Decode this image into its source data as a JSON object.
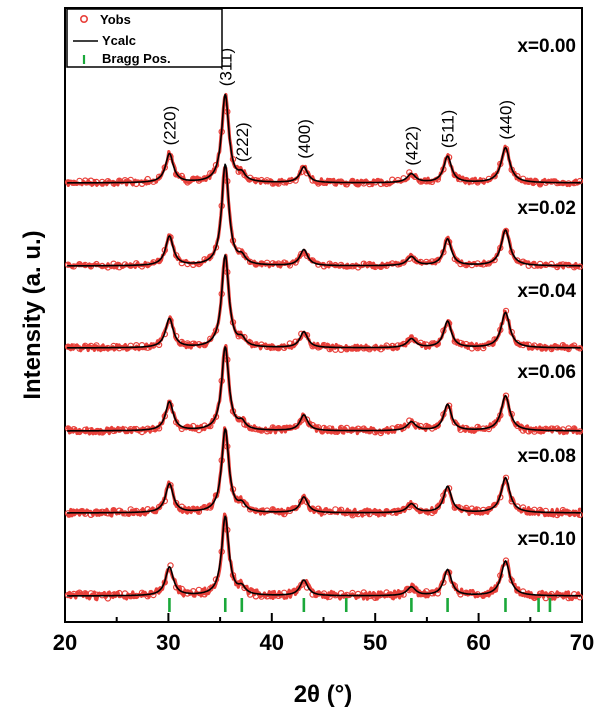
{
  "chart_data": {
    "type": "line",
    "xlabel": "2θ (°)",
    "ylabel": "Intensity (a. u.)",
    "xlim": [
      20,
      70
    ],
    "x_ticks": [
      "20",
      "30",
      "40",
      "50",
      "60",
      "70"
    ],
    "legend": {
      "placement": "top-left",
      "entries": [
        {
          "label": "Yobs",
          "marker": "circle",
          "color": "#e8403a"
        },
        {
          "label": "Ycalc",
          "marker": "line",
          "color": "#000000"
        },
        {
          "label": "Bragg Pos.",
          "marker": "vbar",
          "color": "#1aa83a"
        }
      ]
    },
    "series": [
      {
        "name": "x=0.00",
        "peak_scale": 1.0,
        "noise": 1.0
      },
      {
        "name": "x=0.02",
        "peak_scale": 1.15,
        "noise": 0.8
      },
      {
        "name": "x=0.04",
        "peak_scale": 1.05,
        "noise": 1.0
      },
      {
        "name": "x=0.06",
        "peak_scale": 0.95,
        "noise": 1.1
      },
      {
        "name": "x=0.08",
        "peak_scale": 0.95,
        "noise": 1.2
      },
      {
        "name": "x=0.10",
        "peak_scale": 0.9,
        "noise": 1.3
      }
    ],
    "peaks": [
      {
        "hkl": "(220)",
        "two_theta": 30.1,
        "rel_intensity": 0.33,
        "width": 0.45
      },
      {
        "hkl": "(311)",
        "two_theta": 35.5,
        "rel_intensity": 1.0,
        "width": 0.42
      },
      {
        "hkl": "(222)",
        "two_theta": 37.1,
        "rel_intensity": 0.08,
        "width": 0.4
      },
      {
        "hkl": "(400)",
        "two_theta": 43.1,
        "rel_intensity": 0.18,
        "width": 0.45
      },
      {
        "hkl": "(422)",
        "two_theta": 53.5,
        "rel_intensity": 0.1,
        "width": 0.5
      },
      {
        "hkl": "(511)",
        "two_theta": 57.0,
        "rel_intensity": 0.3,
        "width": 0.45
      },
      {
        "hkl": "(440)",
        "two_theta": 62.6,
        "rel_intensity": 0.4,
        "width": 0.5
      }
    ],
    "bragg_positions": [
      30.1,
      35.5,
      37.1,
      43.1,
      47.2,
      53.5,
      57.0,
      62.6,
      65.8,
      66.9
    ],
    "colors": {
      "observed": "#e8403a",
      "calculated": "#000000",
      "bragg": "#1aa83a"
    }
  }
}
